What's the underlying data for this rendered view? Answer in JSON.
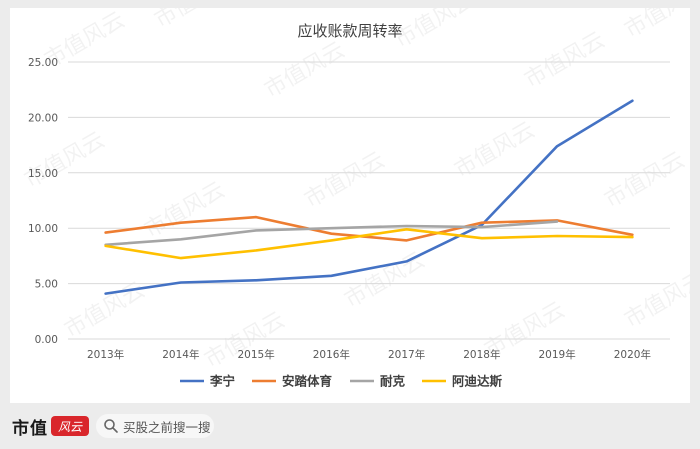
{
  "chart_data": {
    "type": "line",
    "title": "应收账款周转率",
    "xlabel": "",
    "ylabel": "",
    "ylim": [
      0,
      25
    ],
    "yticks": [
      "0.00",
      "5.00",
      "10.00",
      "15.00",
      "20.00",
      "25.00"
    ],
    "categories": [
      "2013年",
      "2014年",
      "2015年",
      "2016年",
      "2017年",
      "2018年",
      "2019年",
      "2020年"
    ],
    "grid": "horizontal",
    "legend_position": "bottom",
    "series": [
      {
        "name": "李宁",
        "color": "#4472c4",
        "values": [
          4.1,
          5.1,
          5.3,
          5.7,
          7.0,
          10.3,
          17.4,
          21.5
        ]
      },
      {
        "name": "安踏体育",
        "color": "#ed7d31",
        "values": [
          9.6,
          10.5,
          11.0,
          9.5,
          8.9,
          10.5,
          10.7,
          9.4
        ]
      },
      {
        "name": "耐克",
        "color": "#a5a5a5",
        "values": [
          8.5,
          9.0,
          9.8,
          10.0,
          10.2,
          10.1,
          10.6,
          null
        ]
      },
      {
        "name": "阿迪达斯",
        "color": "#ffc000",
        "values": [
          8.4,
          7.3,
          8.0,
          8.9,
          9.9,
          9.1,
          9.3,
          9.2
        ]
      }
    ],
    "watermark": "市值风云"
  },
  "footer": {
    "logo_text": "市值",
    "logo_mark": "风云",
    "search_placeholder": "买股之前搜一搜"
  }
}
